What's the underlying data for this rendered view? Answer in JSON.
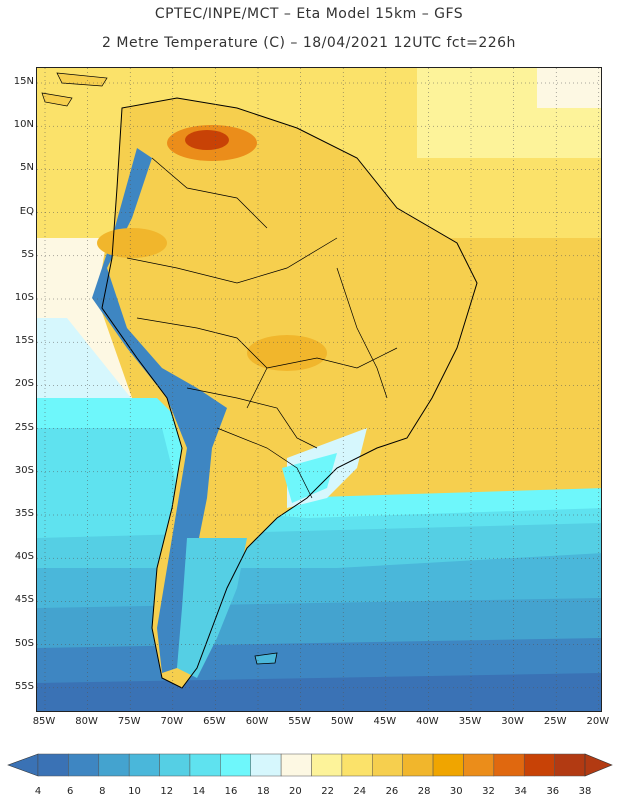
{
  "header": {
    "line1": "CPTEC/INPE/MCT –  Eta Model 15km – GFS",
    "line2": "2 Metre Temperature (C) – 18/04/2021 12UTC fct=226h"
  },
  "axes": {
    "lat_labels": [
      "15N",
      "10N",
      "5N",
      "EQ",
      "5S",
      "10S",
      "15S",
      "20S",
      "25S",
      "30S",
      "35S",
      "40S",
      "45S",
      "50S",
      "55S"
    ],
    "lon_labels": [
      "85W",
      "80W",
      "75W",
      "70W",
      "65W",
      "60W",
      "55W",
      "50W",
      "45W",
      "40W",
      "35W",
      "30W",
      "25W",
      "20W"
    ]
  },
  "colorbar": {
    "ticks": [
      "4",
      "6",
      "8",
      "10",
      "12",
      "14",
      "16",
      "18",
      "20",
      "22",
      "24",
      "26",
      "28",
      "30",
      "32",
      "34",
      "36",
      "38"
    ],
    "colors": [
      "#3a72b5",
      "#3e86c2",
      "#44a3cf",
      "#4ab7da",
      "#55cfe4",
      "#5fe2ef",
      "#6ef7fb",
      "#d6f7fd",
      "#fdf8e3",
      "#fdf39a",
      "#fbe26a",
      "#f6cf4e",
      "#f1b62c",
      "#f0a500",
      "#eb8d1a",
      "#e0680f",
      "#c84206",
      "#b23a12"
    ],
    "low_color": "#3a72b5",
    "high_color": "#b23a12"
  },
  "map": {
    "ocean_south_colors": [
      "#2f5fa8",
      "#3a78bf",
      "#46a6d6",
      "#55cfe4",
      "#6ef7fb",
      "#d6f7fd"
    ],
    "andes_color": "#3e86c2",
    "warm_color": "#f0a500",
    "hot_color": "#c84206",
    "land_color": "#f6cf4e",
    "north_ocean_color": "#fbe26a",
    "boundary_color": "#000000",
    "grid_color": "#555555"
  }
}
